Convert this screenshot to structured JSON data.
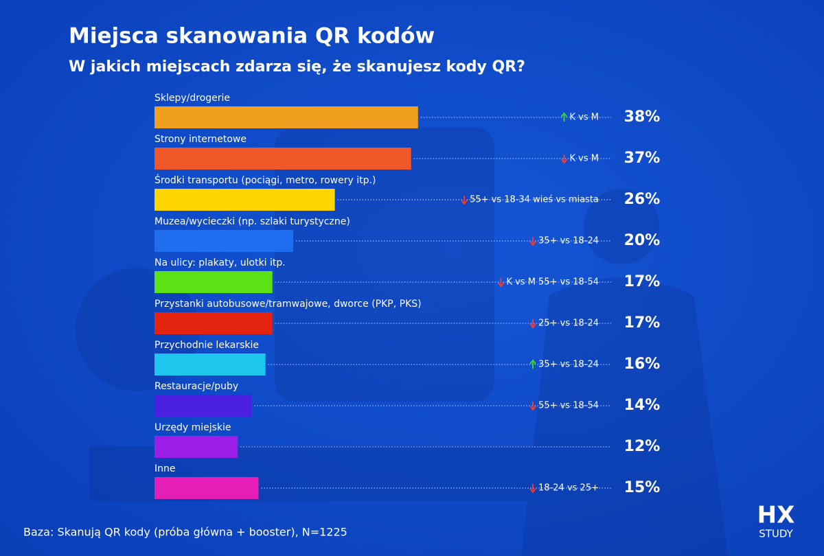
{
  "chart_data": {
    "type": "hbar",
    "title": "Miejsca skanowania QR kodów",
    "subtitle": "W jakich miejscach zdarza się, że skanujesz kody QR?",
    "categories": [
      "Sklepy/drogerie",
      "Strony internetowe",
      "Środki transportu (pociągi, metro, rowery itp.)",
      "Muzea/wycieczki (np. szlaki turystyczne)",
      "Na ulicy: plakaty, ulotki itp.",
      "Przystanki autobusowe/tramwajowe, dworce (PKP, PKS)",
      "Przychodnie lekarskie",
      "Restauracje/puby",
      "Urzędy miejskie",
      "Inne"
    ],
    "values": [
      38,
      37,
      26,
      20,
      17,
      17,
      16,
      14,
      12,
      15
    ],
    "value_labels": [
      "38%",
      "37%",
      "26%",
      "20%",
      "17%",
      "17%",
      "16%",
      "14%",
      "12%",
      "15%"
    ],
    "colors": [
      "#f0a01e",
      "#f0582a",
      "#ffd500",
      "#1f6ef0",
      "#5ce016",
      "#e4230f",
      "#1ec6ee",
      "#4a1fe0",
      "#9b1ee6",
      "#e61eb8"
    ],
    "notes": [
      {
        "direction": "up",
        "text": "K vs M"
      },
      {
        "direction": "down",
        "text": "K vs M"
      },
      {
        "direction": "down",
        "text": "55+ vs 18-34 wieś vs miasta"
      },
      {
        "direction": "down",
        "text": "35+ vs 18-24"
      },
      {
        "direction": "down",
        "text": "K vs M 55+ vs 18-54"
      },
      {
        "direction": "down",
        "text": "25+ vs 18-24"
      },
      {
        "direction": "up",
        "text": "35+ vs 18-24"
      },
      {
        "direction": "down",
        "text": "55+ vs 18-54"
      },
      null,
      {
        "direction": "down",
        "text": "18-24 vs 25+"
      }
    ],
    "footnote": "Baza: Skanują QR kody (próba główna + booster), N=1225",
    "brand": {
      "name": "HX",
      "tagline": "STUDY"
    }
  }
}
